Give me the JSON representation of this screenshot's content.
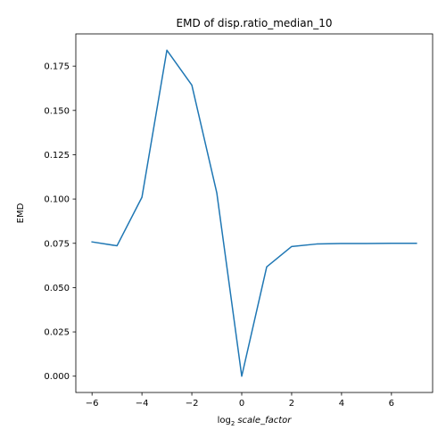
{
  "chart_data": {
    "type": "line",
    "title": "EMD of disp.ratio_median_10",
    "xlabel_base": "log",
    "xlabel_subscript": "2",
    "xlabel_var": "scale_factor",
    "ylabel": "EMD",
    "xlim": [
      -6.65,
      7.65
    ],
    "ylim": [
      -0.0092,
      0.1932
    ],
    "x_ticks": [
      -6,
      -4,
      -2,
      0,
      2,
      4,
      6
    ],
    "x_tick_labels": [
      "−6",
      "−4",
      "−2",
      "0",
      "2",
      "4",
      "6"
    ],
    "y_ticks": [
      0.0,
      0.025,
      0.05,
      0.075,
      0.1,
      0.125,
      0.15,
      0.175
    ],
    "y_tick_labels": [
      "0.000",
      "0.025",
      "0.050",
      "0.075",
      "0.100",
      "0.125",
      "0.150",
      "0.175"
    ],
    "grid": false,
    "series": [
      {
        "color": "#1f77b4",
        "x": [
          -6,
          -5,
          -4,
          -3,
          -2,
          -1,
          0,
          1,
          2,
          3,
          4,
          5,
          6,
          7
        ],
        "y": [
          0.0758,
          0.0736,
          0.101,
          0.184,
          0.1643,
          0.1035,
          0.0,
          0.0617,
          0.0732,
          0.0746,
          0.0749,
          0.0749,
          0.075,
          0.075
        ]
      }
    ]
  }
}
